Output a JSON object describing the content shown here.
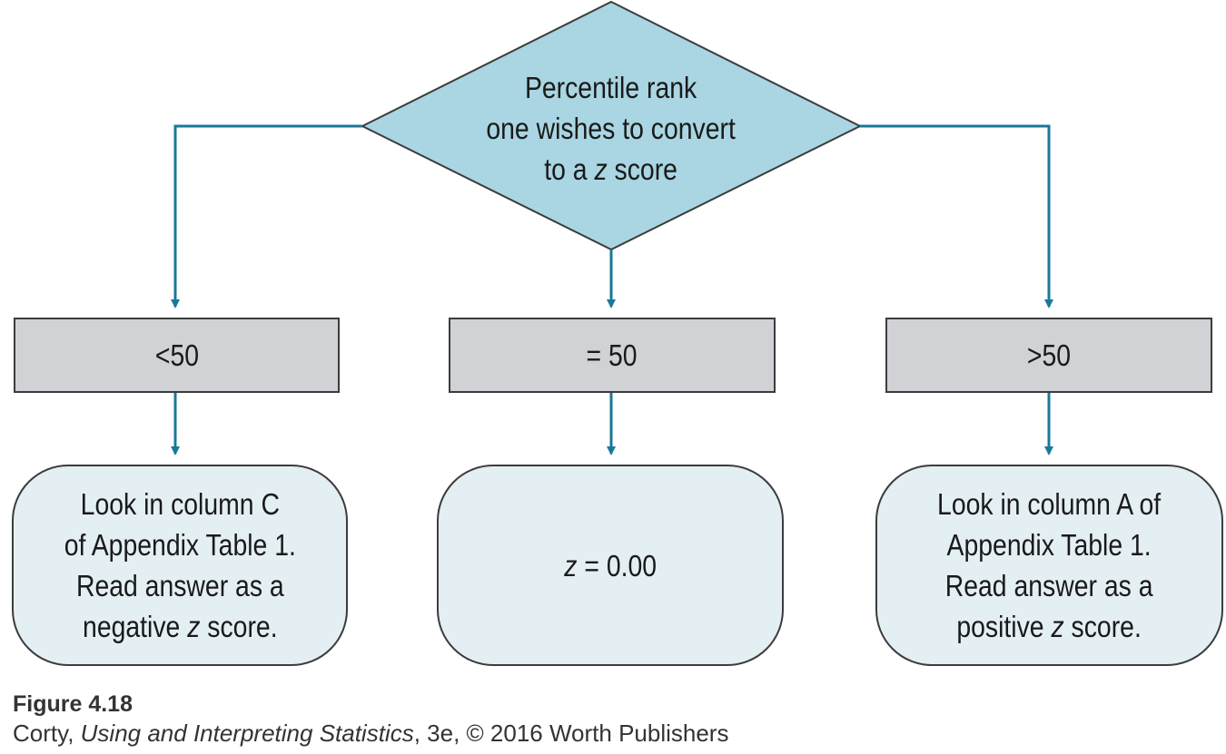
{
  "colors": {
    "arrow": "#1a7898",
    "diamond_fill": "#a9d6e2",
    "box_fill": "#d0d2d5",
    "outcome_fill": "#e4eff4",
    "border": "#3c3c3c"
  },
  "decision": {
    "lines": [
      "Percentile rank",
      "one wishes to convert",
      "to a z score"
    ]
  },
  "conditions": {
    "left": "<50",
    "middle": "= 50",
    "right": ">50"
  },
  "outcomes": {
    "left": [
      "Look in column C",
      "of Appendix Table 1.",
      "Read answer as a",
      "negative z score."
    ],
    "middle": "z = 0.00",
    "right": [
      "Look in column A of",
      "Appendix Table 1.",
      "Read answer as a",
      "positive z score."
    ]
  },
  "caption": {
    "figure": "Figure 4.18",
    "author": "Corty, ",
    "book_title": "Using and Interpreting Statistics",
    "edition": ", 3e, © 2016 Worth Publishers"
  }
}
